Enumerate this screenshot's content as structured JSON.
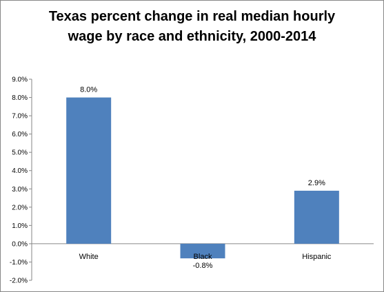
{
  "chart_data": {
    "type": "bar",
    "title_lines": [
      "Texas percent change in real median hourly",
      "wage by race and ethnicity, 2000-2014"
    ],
    "categories": [
      "White",
      "Black",
      "Hispanic"
    ],
    "values": [
      8.0,
      -0.8,
      2.9
    ],
    "data_labels": [
      "8.0%",
      "-0.8%",
      "2.9%"
    ],
    "ylim": [
      -2.0,
      9.0
    ],
    "yticks": [
      "-2.0%",
      "-1.0%",
      "0.0%",
      "1.0%",
      "2.0%",
      "3.0%",
      "4.0%",
      "5.0%",
      "6.0%",
      "7.0%",
      "8.0%",
      "9.0%"
    ],
    "xlabel": "",
    "ylabel": "",
    "grid": false,
    "legend": "none",
    "bar_color": "#4F81BD"
  }
}
